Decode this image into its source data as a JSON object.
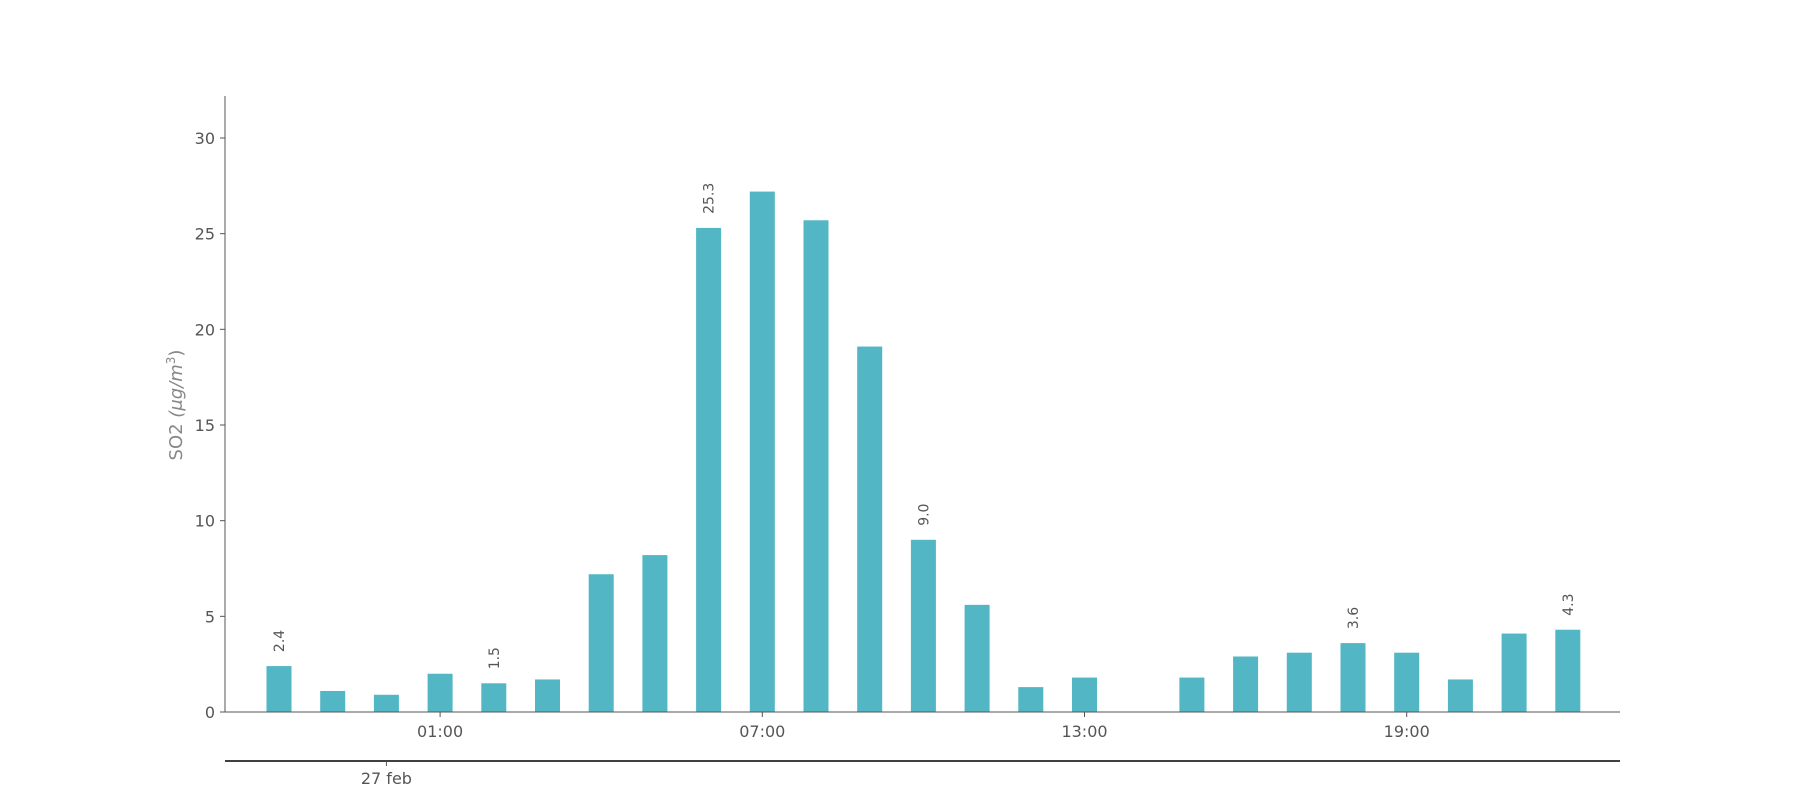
{
  "chart_data": {
    "type": "bar",
    "title": "",
    "xlabel": "",
    "ylabel": "SO2 (μg/m³)",
    "ylabel_main": "SO2 ",
    "ylabel_unit": "(μg/m",
    "ylabel_sup": "3",
    "ylabel_close": ")",
    "ylim": [
      0,
      32
    ],
    "yticks": [
      0,
      5,
      10,
      15,
      20,
      25,
      30
    ],
    "categories": [
      "22:00",
      "23:00",
      "00:00",
      "01:00",
      "02:00",
      "03:00",
      "04:00",
      "05:00",
      "06:00",
      "07:00",
      "08:00",
      "09:00",
      "10:00",
      "11:00",
      "12:00",
      "13:00",
      "14:00",
      "15:00",
      "16:00",
      "17:00",
      "18:00",
      "19:00",
      "20:00",
      "21:00",
      "22:00"
    ],
    "values": [
      2.4,
      1.1,
      0.9,
      2.0,
      1.5,
      1.7,
      7.2,
      8.2,
      25.3,
      27.2,
      25.7,
      19.1,
      9.0,
      5.6,
      1.3,
      1.8,
      null,
      1.8,
      2.9,
      3.1,
      3.6,
      3.1,
      1.7,
      4.1,
      4.3
    ],
    "xtick_labels": [
      {
        "index": 3,
        "label": "01:00"
      },
      {
        "index": 9,
        "label": "07:00"
      },
      {
        "index": 15,
        "label": "13:00"
      },
      {
        "index": 21,
        "label": "19:00"
      }
    ],
    "date_label": {
      "index": 2,
      "label": "27 feb"
    },
    "data_labels": [
      {
        "index": 0,
        "label": "2.4"
      },
      {
        "index": 4,
        "label": "1.5"
      },
      {
        "index": 8,
        "label": "25.3"
      },
      {
        "index": 12,
        "label": "9.0"
      },
      {
        "index": 20,
        "label": "3.6"
      },
      {
        "index": 24,
        "label": "4.3"
      }
    ],
    "bar_color": "#52b6c4",
    "grid": false,
    "legend": "none"
  }
}
